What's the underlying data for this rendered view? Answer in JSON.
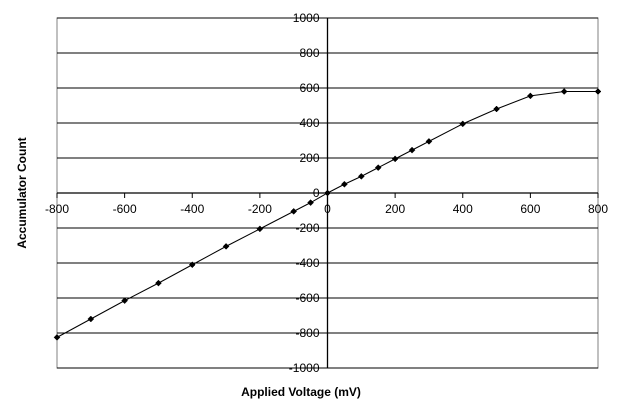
{
  "chart_data": {
    "type": "scatter",
    "title": "",
    "xlabel": "Applied Voltage (mV)",
    "ylabel": "Accumulator Count",
    "xlim": [
      -800,
      800
    ],
    "ylim": [
      -1000,
      1000
    ],
    "x_ticks": [
      "-800",
      "-600",
      "-400",
      "-200",
      "0",
      "200",
      "400",
      "600",
      "800"
    ],
    "y_ticks": [
      "1000",
      "800",
      "600",
      "400",
      "200",
      "0",
      "-200",
      "-400",
      "-600",
      "-800",
      "-1000"
    ],
    "grid": true,
    "legend": "none",
    "series": [
      {
        "x": [
          -800,
          -700,
          -600,
          -500,
          -400,
          -300,
          -200,
          -100,
          -50,
          0,
          50,
          100,
          150,
          200,
          250,
          300,
          400,
          500,
          600,
          700,
          800
        ],
        "y": [
          -825,
          -720,
          -615,
          -515,
          -410,
          -305,
          -205,
          -105,
          -55,
          0,
          50,
          95,
          145,
          195,
          245,
          295,
          395,
          480,
          555,
          580,
          580
        ],
        "color": "#000000"
      }
    ]
  }
}
